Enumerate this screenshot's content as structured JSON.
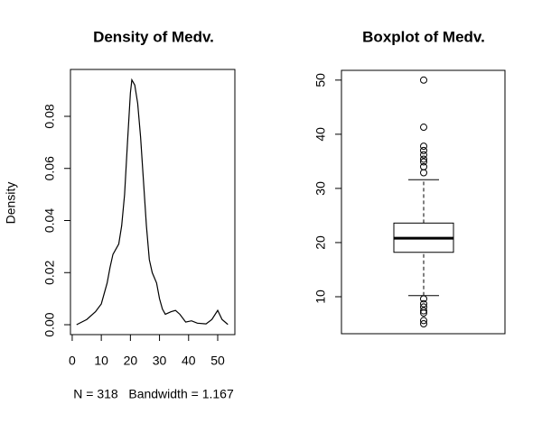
{
  "chart_data": [
    {
      "type": "line",
      "title": "Density of Medv.",
      "ylabel": "Density",
      "xlabel": "N = 318   Bandwidth = 1.167",
      "x": [
        1.5,
        5,
        8,
        10,
        12,
        13,
        14,
        15,
        16,
        17,
        18,
        19,
        20,
        20.5,
        21.5,
        22.5,
        23.5,
        24.5,
        25.5,
        26.5,
        27.5,
        29,
        30,
        31,
        32,
        34,
        35.5,
        37,
        39,
        41,
        43,
        46,
        48,
        50,
        51.5,
        53.5
      ],
      "y": [
        0,
        0.002,
        0.005,
        0.008,
        0.016,
        0.022,
        0.027,
        0.029,
        0.031,
        0.038,
        0.05,
        0.07,
        0.089,
        0.094,
        0.092,
        0.085,
        0.072,
        0.055,
        0.038,
        0.025,
        0.02,
        0.016,
        0.01,
        0.006,
        0.004,
        0.005,
        0.0055,
        0.004,
        0.001,
        0.0015,
        0.0006,
        0.0003,
        0.002,
        0.0055,
        0.002,
        0.0001
      ],
      "color": "#000000",
      "xlim": [
        -0.6,
        55.9
      ],
      "xticks": [
        0,
        10,
        20,
        30,
        40,
        50
      ],
      "ylim": [
        -0.0038,
        0.098
      ],
      "yticks": [
        {
          "value": 0,
          "label": "0.00"
        },
        {
          "value": 0.02,
          "label": "0.02"
        },
        {
          "value": 0.04,
          "label": "0.04"
        },
        {
          "value": 0.06,
          "label": "0.06"
        },
        {
          "value": 0.08,
          "label": "0.08"
        }
      ]
    },
    {
      "type": "box",
      "title": "Boxplot of Medv.",
      "whisker_low": 10.2,
      "q1": 18.2,
      "median": 20.8,
      "q3": 23.6,
      "whisker_high": 31.6,
      "outliers": [
        32.9,
        34.0,
        34.9,
        35.4,
        36.2,
        37.0,
        37.8,
        41.3,
        50,
        9.6,
        8.7,
        8.1,
        7.4,
        7.0,
        5.6,
        5.0
      ],
      "ylim": [
        3.17,
        51.8
      ],
      "yticks": [
        10,
        20,
        30,
        40,
        50
      ]
    }
  ]
}
